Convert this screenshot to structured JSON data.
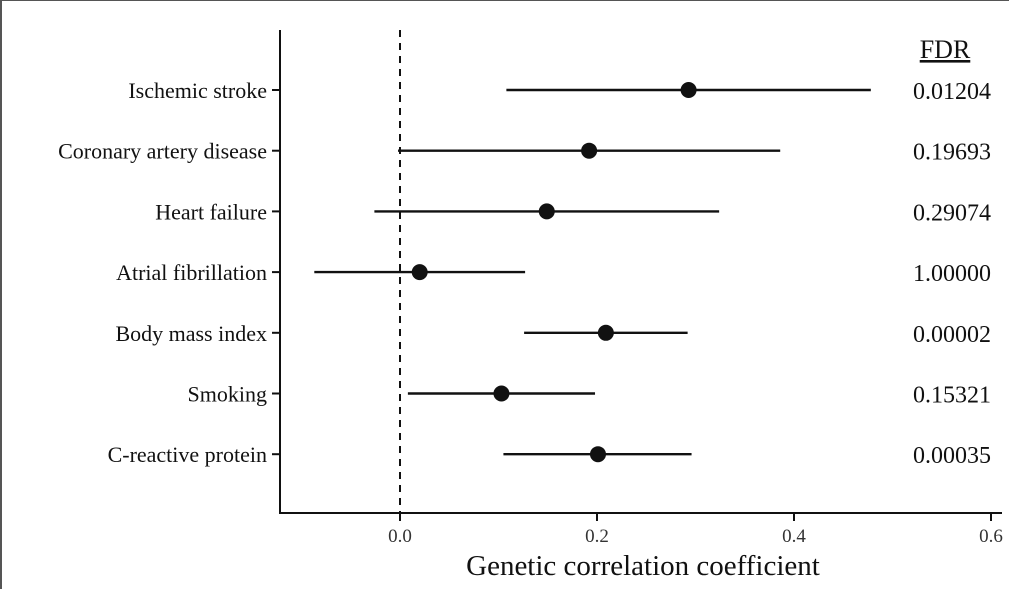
{
  "chart_data": {
    "type": "forest",
    "xlabel": "Genetic correlation coefficient",
    "xlim": [
      -0.12,
      0.6
    ],
    "xticks": [
      "0.0",
      "0.2",
      "0.4",
      "0.6"
    ],
    "reference_line": 0.0,
    "fdr_header": "FDR",
    "rows": [
      {
        "label": "Ischemic stroke",
        "estimate": 0.293,
        "lower": 0.108,
        "upper": 0.478,
        "fdr": "0.01204"
      },
      {
        "label": "Coronary artery disease",
        "estimate": 0.192,
        "lower": -0.002,
        "upper": 0.386,
        "fdr": "0.19693"
      },
      {
        "label": "Heart failure",
        "estimate": 0.149,
        "lower": -0.026,
        "upper": 0.324,
        "fdr": "0.29074"
      },
      {
        "label": "Atrial fibrillation",
        "estimate": 0.02,
        "lower": -0.087,
        "upper": 0.127,
        "fdr": "1.00000"
      },
      {
        "label": "Body mass index",
        "estimate": 0.209,
        "lower": 0.126,
        "upper": 0.292,
        "fdr": "0.00002"
      },
      {
        "label": "Smoking",
        "estimate": 0.103,
        "lower": 0.008,
        "upper": 0.198,
        "fdr": "0.15321"
      },
      {
        "label": "C-reactive protein",
        "estimate": 0.201,
        "lower": 0.105,
        "upper": 0.296,
        "fdr": "0.00035"
      }
    ]
  }
}
